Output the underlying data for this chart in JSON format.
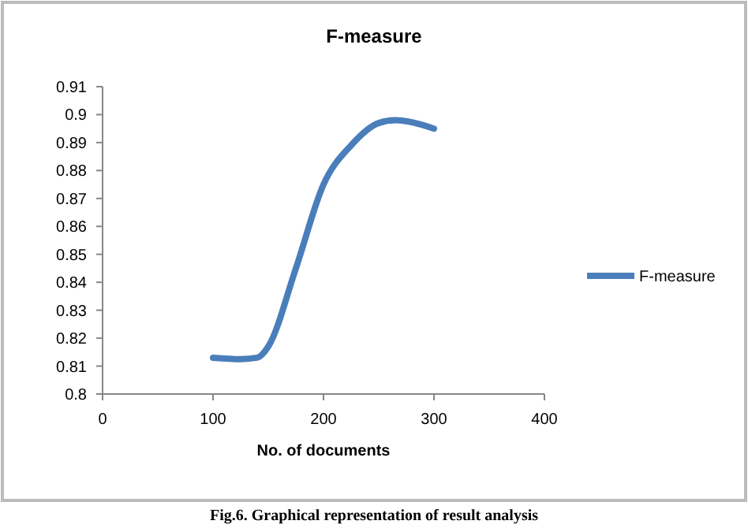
{
  "chart_data": {
    "type": "line",
    "title": "F-measure",
    "xlabel": "No. of documents",
    "annotations": [
      "Fig.6. Graphical representation of result analysis"
    ],
    "xlim": [
      0,
      400
    ],
    "xticks": [
      0,
      100,
      200,
      300,
      400
    ],
    "ylim": [
      0.8,
      0.91
    ],
    "yticks": [
      0.8,
      0.81,
      0.82,
      0.83,
      0.84,
      0.85,
      0.86,
      0.87,
      0.88,
      0.89,
      0.9,
      0.91
    ],
    "legend": "right",
    "grid": false,
    "series": [
      {
        "name": "F-measure",
        "color": "#4a7ebb",
        "x": [
          100,
          125,
          140,
          150,
          175,
          200,
          225,
          250,
          265,
          300
        ],
        "values": [
          0.813,
          0.8125,
          0.813,
          0.817,
          0.845,
          0.875,
          0.889,
          0.897,
          0.898,
          0.895
        ]
      }
    ]
  }
}
